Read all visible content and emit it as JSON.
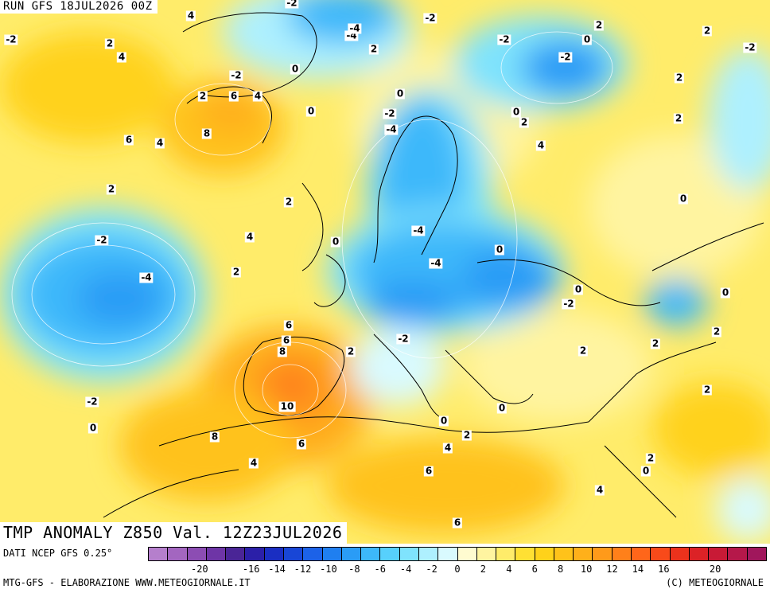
{
  "header": {
    "run_label": "RUN GFS 18JUL2026 00Z"
  },
  "map": {
    "title": "TMP ANOMALY Z850 Val. 12Z23JUL2026",
    "isolines": [
      "-2",
      "4",
      "2",
      "-2",
      "6",
      "-4",
      "-4",
      "2",
      "-2",
      "0",
      "-2",
      "2",
      "0",
      "2",
      "-2",
      "2",
      "-2",
      "0",
      "2",
      "2",
      "6",
      "4",
      "4",
      "-2",
      "0",
      "0",
      "2",
      "8",
      "4",
      "6",
      "-2",
      "-4",
      "2",
      "0",
      "2",
      "2",
      "4",
      "0",
      "-4",
      "-2",
      "-4",
      "-4",
      "0",
      "-2",
      "0",
      "4",
      "6",
      "2",
      "8",
      "-2",
      "2",
      "0",
      "2",
      "10",
      "2",
      "-2",
      "0",
      "0",
      "0",
      "2",
      "8",
      "2",
      "4",
      "6",
      "4",
      "6",
      "0",
      "2",
      "4",
      "6"
    ]
  },
  "colorbar": {
    "colors": [
      "#b57fcc",
      "#a366c0",
      "#8c4db3",
      "#6e35a6",
      "#4a2596",
      "#2b1fa8",
      "#1a2ec2",
      "#1846d6",
      "#1c62e8",
      "#1f7ff0",
      "#2a9cf6",
      "#3db8fa",
      "#57d0fc",
      "#7fe3fd",
      "#aef0fe",
      "#d9fafe",
      "#fffbd0",
      "#fff4a0",
      "#ffec6a",
      "#ffe033",
      "#ffd21a",
      "#ffc21a",
      "#ffb01a",
      "#ff9a1a",
      "#ff801a",
      "#ff661a",
      "#f84a1a",
      "#ec321c",
      "#dc2226",
      "#c81a36",
      "#b5184a",
      "#a0175c"
    ],
    "ticks": [
      "-20",
      "-18",
      "-16",
      "-14",
      "-12",
      "-10",
      "-8",
      "-6",
      "-4",
      "-2",
      "0",
      "2",
      "4",
      "6",
      "8",
      "10",
      "12",
      "14",
      "16",
      "18",
      "20"
    ],
    "tick_labels": [
      "-20",
      "-16",
      "-14",
      "-12",
      "-10",
      "-8",
      "-6",
      "-4",
      "-2",
      "0",
      "2",
      "4",
      "6",
      "8",
      "10",
      "12",
      "14",
      "16",
      "20"
    ]
  },
  "footer": {
    "data_source": "DATI NCEP GFS 0.25°",
    "credit_left": "MTG-GFS - ELABORAZIONE WWW.METEOGIORNALE.IT",
    "credit_right": "(C) METEOGIORNALE"
  }
}
